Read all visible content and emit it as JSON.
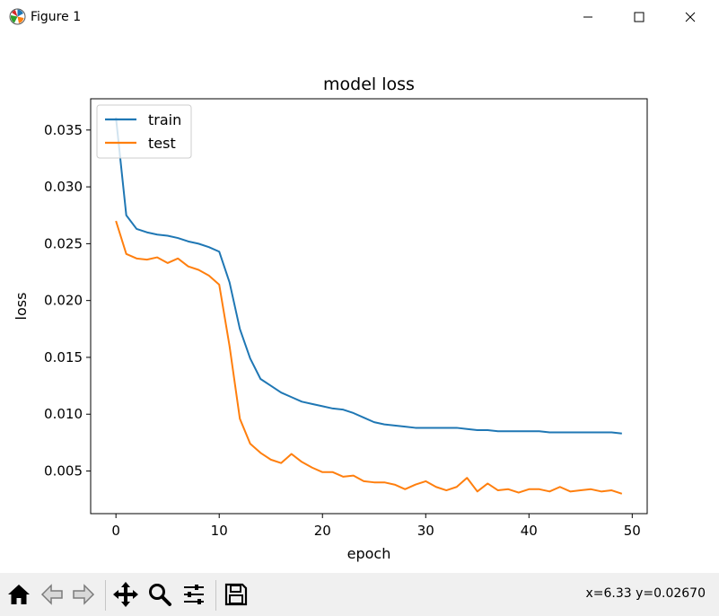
{
  "window": {
    "title": "Figure 1"
  },
  "toolbar": {
    "buttons": [
      "home-icon",
      "back-icon",
      "forward-icon",
      "pan-icon",
      "zoom-icon",
      "configure-subplots-icon",
      "save-icon"
    ],
    "coords": "x=6.33 y=0.02670"
  },
  "colors": {
    "train": "#1f77b4",
    "test": "#ff7f0e",
    "toolbar_bg": "#f0f0f0"
  },
  "chart_data": {
    "type": "line",
    "title": "model loss",
    "xlabel": "epoch",
    "ylabel": "loss",
    "xlim": [
      -2.45,
      51.45
    ],
    "ylim": [
      0.00125,
      0.03775
    ],
    "xticks": [
      0,
      10,
      20,
      30,
      40,
      50
    ],
    "xtick_labels": [
      "0",
      "10",
      "20",
      "30",
      "40",
      "50"
    ],
    "yticks": [
      0.005,
      0.01,
      0.015,
      0.02,
      0.025,
      0.03,
      0.035
    ],
    "ytick_labels": [
      "0.005",
      "0.010",
      "0.015",
      "0.020",
      "0.025",
      "0.030",
      "0.035"
    ],
    "grid": false,
    "legend": "upper left",
    "x": [
      0,
      1,
      2,
      3,
      4,
      5,
      6,
      7,
      8,
      9,
      10,
      11,
      12,
      13,
      14,
      15,
      16,
      17,
      18,
      19,
      20,
      21,
      22,
      23,
      24,
      25,
      26,
      27,
      28,
      29,
      30,
      31,
      32,
      33,
      34,
      35,
      36,
      37,
      38,
      39,
      40,
      41,
      42,
      43,
      44,
      45,
      46,
      47,
      48,
      49
    ],
    "series": [
      {
        "name": "train",
        "color": "#1f77b4",
        "values": [
          0.0361,
          0.0275,
          0.0263,
          0.026,
          0.0258,
          0.0257,
          0.0255,
          0.0252,
          0.025,
          0.0247,
          0.0243,
          0.0216,
          0.0175,
          0.0149,
          0.0131,
          0.0125,
          0.0119,
          0.0115,
          0.0111,
          0.0109,
          0.0107,
          0.0105,
          0.0104,
          0.0101,
          0.0097,
          0.0093,
          0.0091,
          0.009,
          0.0089,
          0.0088,
          0.0088,
          0.0088,
          0.0088,
          0.0088,
          0.0087,
          0.0086,
          0.0086,
          0.0085,
          0.0085,
          0.0085,
          0.0085,
          0.0085,
          0.0084,
          0.0084,
          0.0084,
          0.0084,
          0.0084,
          0.0084,
          0.0084,
          0.0083
        ]
      },
      {
        "name": "test",
        "color": "#ff7f0e",
        "values": [
          0.027,
          0.0241,
          0.0237,
          0.0236,
          0.0238,
          0.0233,
          0.0237,
          0.023,
          0.0227,
          0.0222,
          0.0214,
          0.016,
          0.0096,
          0.0074,
          0.0066,
          0.006,
          0.0057,
          0.0065,
          0.0058,
          0.0053,
          0.0049,
          0.0049,
          0.0045,
          0.0046,
          0.0041,
          0.004,
          0.004,
          0.0038,
          0.0034,
          0.0038,
          0.0041,
          0.0036,
          0.0033,
          0.0036,
          0.0044,
          0.0032,
          0.0039,
          0.0033,
          0.0034,
          0.0031,
          0.0034,
          0.0034,
          0.0032,
          0.0036,
          0.0032,
          0.0033,
          0.0034,
          0.0032,
          0.0033,
          0.003
        ]
      }
    ]
  }
}
